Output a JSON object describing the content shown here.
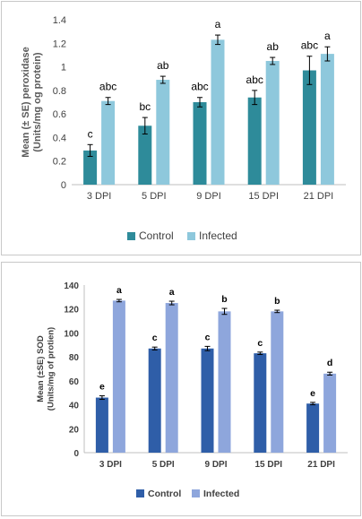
{
  "chart_data": [
    {
      "type": "bar",
      "ylabel_line1": "Mean (± SE) peroxidase",
      "ylabel_line2": "(Units/mg og protein)",
      "ylim": [
        0,
        1.4
      ],
      "ytick_step": 0.2,
      "yticks": [
        "0",
        "0.2",
        "0.4",
        "0.6",
        "0.8",
        "1",
        "1.2",
        "1.4"
      ],
      "grid": false,
      "legend_position": "bottom",
      "categories": [
        "3 DPI",
        "5 DPI",
        "9 DPI",
        "15 DPI",
        "21 DPI"
      ],
      "series": [
        {
          "name": "Control",
          "color": "#2e8b9a",
          "values": [
            0.29,
            0.5,
            0.7,
            0.74,
            0.97
          ],
          "errors": [
            0.05,
            0.07,
            0.04,
            0.06,
            0.12
          ],
          "labels": [
            "c",
            "bc",
            "abc",
            "abc",
            "abc"
          ]
        },
        {
          "name": "Infected",
          "color": "#8ec8dc",
          "values": [
            0.71,
            0.89,
            1.23,
            1.05,
            1.11
          ],
          "errors": [
            0.03,
            0.03,
            0.04,
            0.03,
            0.06
          ],
          "labels": [
            "abc",
            "ab",
            "a",
            "ab",
            "a"
          ]
        }
      ]
    },
    {
      "type": "bar",
      "ylabel_line1": "Mean (±SE) SOD",
      "ylabel_line2": "(Units/mg of protien)",
      "ylim": [
        0,
        140
      ],
      "ytick_step": 20,
      "yticks": [
        "0",
        "20",
        "40",
        "60",
        "80",
        "100",
        "120",
        "140"
      ],
      "grid": false,
      "legend_position": "bottom",
      "categories": [
        "3 DPI",
        "5 DPI",
        "9 DPI",
        "15 DPI",
        "21 DPI"
      ],
      "series": [
        {
          "name": "Control",
          "color": "#2f5ea8",
          "values": [
            46,
            87,
            87,
            83,
            41
          ],
          "errors": [
            1.5,
            1.2,
            1.8,
            1.0,
            1.0
          ],
          "labels": [
            "e",
            "c",
            "c",
            "c",
            "e"
          ]
        },
        {
          "name": "Infected",
          "color": "#8ea6dc",
          "values": [
            127,
            125,
            118,
            118,
            66
          ],
          "errors": [
            1.0,
            1.5,
            2.5,
            1.0,
            1.2
          ],
          "labels": [
            "a",
            "a",
            "b",
            "b",
            "d"
          ]
        }
      ]
    }
  ]
}
